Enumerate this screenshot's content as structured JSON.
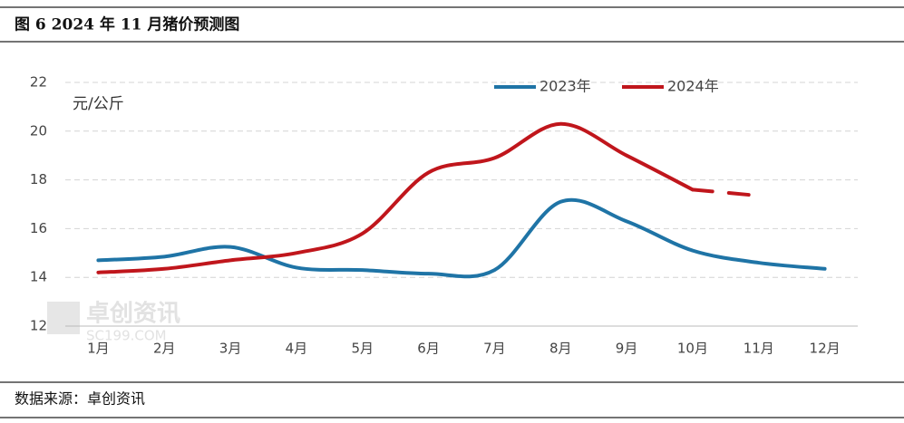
{
  "chart_data": {
    "type": "line",
    "title": "图 6 2024 年 11 月猪价预测图",
    "y_label": "元/公斤",
    "source": "数据来源：卓创资讯",
    "watermark": "卓创资讯",
    "watermark_sub": "SC199.COM",
    "categories": [
      "1月",
      "2月",
      "3月",
      "4月",
      "5月",
      "6月",
      "7月",
      "8月",
      "9月",
      "10月",
      "11月",
      "12月"
    ],
    "series": [
      {
        "name": "2023年",
        "color": "#1f74a6",
        "values": [
          14.7,
          14.85,
          15.25,
          14.4,
          14.3,
          14.15,
          14.3,
          17.1,
          16.3,
          15.1,
          14.6,
          14.35
        ]
      },
      {
        "name": "2024年",
        "color": "#c0161c",
        "values": [
          14.2,
          14.35,
          14.7,
          15.0,
          15.8,
          18.3,
          18.9,
          20.3,
          19.0,
          17.6,
          17.35,
          null
        ],
        "dash_from_index": 9
      }
    ],
    "ylim": [
      12,
      22
    ],
    "yticks": [
      12,
      14,
      16,
      18,
      20,
      22
    ],
    "grid": true,
    "legend": "top"
  }
}
